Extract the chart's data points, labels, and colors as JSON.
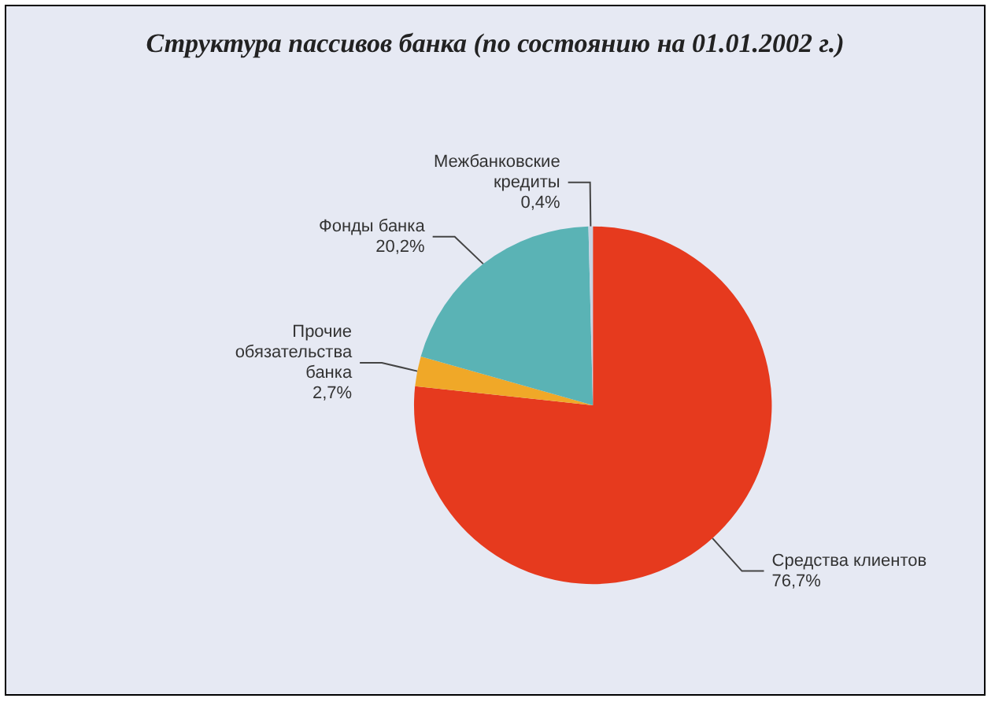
{
  "chart_data": {
    "type": "pie",
    "title": "Структура пассивов банка (по состоянию на 01.01.2002 г.)",
    "categories": [
      "Средства клиентов",
      "Прочие обязательства банка",
      "Фонды банка",
      "Межбанковские кредиты"
    ],
    "values": [
      76.7,
      2.7,
      20.2,
      0.4
    ],
    "colors": [
      "#e63a1e",
      "#f0a828",
      "#5ab3b5",
      "#c9d3e3"
    ],
    "value_labels": [
      "76,7%",
      "2,7%",
      "20,2%",
      "0,4%"
    ]
  }
}
